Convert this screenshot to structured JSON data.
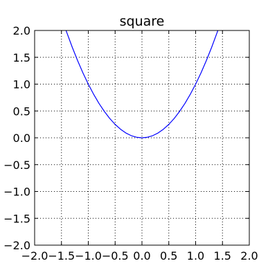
{
  "chart_data": {
    "type": "line",
    "title": "square",
    "xlabel": "",
    "ylabel": "",
    "xlim": [
      -2.0,
      2.0
    ],
    "ylim": [
      -2.0,
      2.0
    ],
    "grid": true,
    "xticks": [
      -2.0,
      -1.5,
      -1.0,
      -0.5,
      0.0,
      0.5,
      1.0,
      1.5,
      2.0
    ],
    "yticks": [
      -2.0,
      -1.5,
      -1.0,
      -0.5,
      0.0,
      0.5,
      1.0,
      1.5,
      2.0
    ],
    "xtick_labels": [
      "−2.0",
      "−1.5",
      "−1.0",
      "−0.5",
      "0.0",
      "0.5",
      "1.0",
      "1.5",
      "2.0"
    ],
    "ytick_labels": [
      "−2.0",
      "−1.5",
      "−1.0",
      "−0.5",
      "0.0",
      "0.5",
      "1.0",
      "1.5",
      "2.0"
    ],
    "series": [
      {
        "color": "#0000ff",
        "x": [
          -1.414,
          -1.4,
          -1.3,
          -1.2,
          -1.1,
          -1.0,
          -0.9,
          -0.8,
          -0.7,
          -0.6,
          -0.5,
          -0.4,
          -0.3,
          -0.2,
          -0.1,
          0.0,
          0.1,
          0.2,
          0.3,
          0.4,
          0.5,
          0.6,
          0.7,
          0.8,
          0.9,
          1.0,
          1.1,
          1.2,
          1.3,
          1.4,
          1.414
        ],
        "y": [
          2.0,
          1.96,
          1.69,
          1.44,
          1.21,
          1.0,
          0.81,
          0.64,
          0.49,
          0.36,
          0.25,
          0.16,
          0.09,
          0.04,
          0.01,
          0.0,
          0.01,
          0.04,
          0.09,
          0.16,
          0.25,
          0.36,
          0.49,
          0.64,
          0.81,
          1.0,
          1.21,
          1.44,
          1.69,
          1.96,
          2.0
        ]
      }
    ]
  }
}
